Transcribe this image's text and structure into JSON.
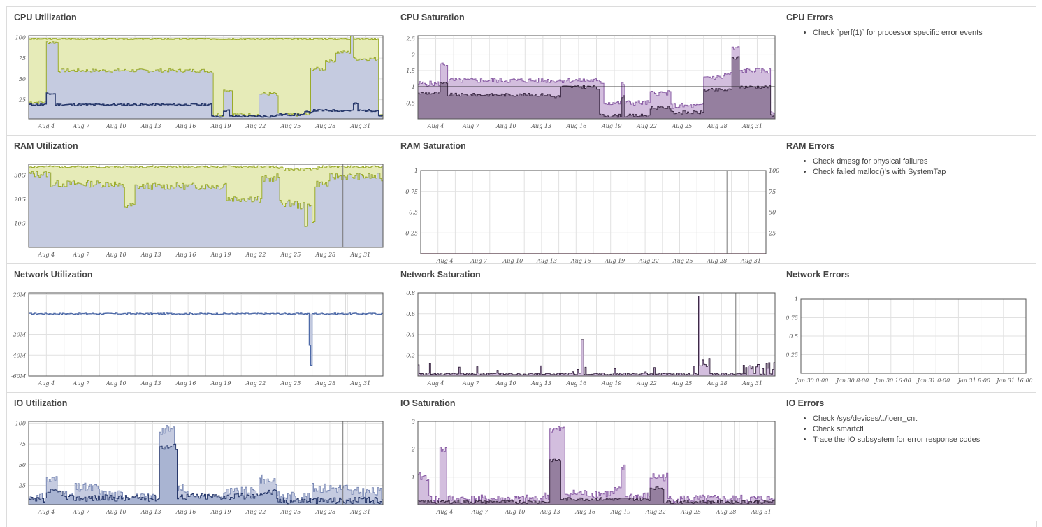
{
  "colors": {
    "grid": "#e1e1e1",
    "frame": "#555555",
    "util_fill_bg": "#e6ebb8",
    "util_stroke_bg": "#9aab2a",
    "util_fill_fg": "#c5cbe0",
    "util_stroke_fg": "#7c8bb6",
    "util_dark": "#27386b",
    "sat_fill_light": "#d3bede",
    "sat_stroke_light": "#8a5ea5",
    "sat_fill_dark": "#957f9f",
    "sat_stroke_dark": "#3c2a45"
  },
  "date_ticks": [
    "Aug 4",
    "Aug 7",
    "Aug 10",
    "Aug 13",
    "Aug 16",
    "Aug 19",
    "Aug 22",
    "Aug 25",
    "Aug 28",
    "Aug 31"
  ],
  "panels": {
    "cpu_util": {
      "title": "CPU Utilization",
      "yticks": [
        "100",
        "75",
        "50",
        "25"
      ]
    },
    "cpu_sat": {
      "title": "CPU Saturation",
      "yticks": [
        "2.5",
        "2",
        "1.5",
        "1",
        "0.5"
      ]
    },
    "cpu_err": {
      "title": "CPU Errors",
      "items": [
        "Check `perf(1)` for processor specific error events"
      ]
    },
    "ram_util": {
      "title": "RAM Utilization",
      "yticks": [
        "30G",
        "20G",
        "10G"
      ]
    },
    "ram_sat": {
      "title": "RAM Saturation",
      "yticks": [
        "1",
        "0.75",
        "0.5",
        "0.25"
      ],
      "y2ticks": [
        "100",
        "75",
        "50",
        "25"
      ]
    },
    "ram_err": {
      "title": "RAM Errors",
      "items": [
        "Check dmesg for physical failures",
        "Check failed malloc()'s with SystemTap"
      ]
    },
    "net_util": {
      "title": "Network Utilization",
      "yticks": [
        "20M",
        "-20M",
        "-40M",
        "-60M"
      ]
    },
    "net_sat": {
      "title": "Network Saturation",
      "yticks": [
        "0.8",
        "0.6",
        "0.4",
        "0.2"
      ]
    },
    "net_err": {
      "title": "Network Errors",
      "yticks": [
        "1",
        "0.75",
        "0.5",
        "0.25"
      ],
      "xticks": [
        "Jan 30 0:00",
        "Jan 30 8:00",
        "Jan 30 16:00",
        "Jan 31 0:00",
        "Jan 31 8:00",
        "Jan 31 16:00"
      ]
    },
    "io_util": {
      "title": "IO Utilization",
      "yticks": [
        "100",
        "75",
        "50",
        "25"
      ]
    },
    "io_sat": {
      "title": "IO Saturation",
      "yticks": [
        "3",
        "2",
        "1"
      ]
    },
    "io_err": {
      "title": "IO Errors",
      "items": [
        "Check /sys/devices/../ioerr_cnt",
        "Check smartctl",
        "Trace the IO subsystem for error response codes"
      ]
    }
  },
  "chart_data": [
    {
      "type": "area",
      "title": "CPU Utilization",
      "x": [
        "Aug 4",
        "Aug 7",
        "Aug 10",
        "Aug 13",
        "Aug 16",
        "Aug 19",
        "Aug 22",
        "Aug 25",
        "Aug 28",
        "Aug 31"
      ],
      "ylim": [
        0,
        100
      ],
      "series": [
        {
          "values": [
            97,
            97,
            97,
            97,
            97,
            97,
            97,
            97,
            97,
            97
          ]
        },
        {
          "values": [
            58,
            58,
            58,
            59,
            58,
            5,
            30,
            7,
            82,
            72
          ]
        },
        {
          "values": [
            17,
            17,
            17,
            18,
            17,
            4,
            5,
            8,
            11,
            9
          ]
        }
      ]
    },
    {
      "type": "area",
      "title": "CPU Saturation",
      "x": [
        "Aug 4",
        "Aug 7",
        "Aug 10",
        "Aug 13",
        "Aug 16",
        "Aug 19",
        "Aug 22",
        "Aug 25",
        "Aug 28",
        "Aug 31"
      ],
      "ylim": [
        0,
        2.6
      ],
      "series": [
        {
          "values": [
            1.7,
            1.15,
            1.1,
            1.1,
            1.1,
            0.5,
            0.8,
            0.55,
            2.2,
            1.3
          ]
        },
        {
          "values": [
            0.8,
            0.75,
            0.75,
            0.7,
            0.95,
            0.15,
            0.35,
            0.25,
            1.9,
            1.0
          ]
        },
        {
          "values": [
            1,
            1,
            1,
            1,
            1,
            1,
            1,
            1,
            1,
            1
          ]
        }
      ]
    },
    {
      "type": "area",
      "title": "RAM Utilization",
      "x": [
        "Aug 4",
        "Aug 7",
        "Aug 10",
        "Aug 13",
        "Aug 16",
        "Aug 19",
        "Aug 22",
        "Aug 25",
        "Aug 28",
        "Aug 31"
      ],
      "ylim": [
        0,
        34
      ],
      "series": [
        {
          "values": [
            33,
            33,
            33,
            33,
            33,
            33,
            32,
            33,
            33,
            33
          ]
        },
        {
          "values": [
            29,
            26,
            26,
            26,
            27,
            20,
            28,
            18,
            29,
            28
          ]
        }
      ]
    },
    {
      "type": "line",
      "title": "RAM Saturation",
      "ylim": [
        0,
        1
      ],
      "values": [
        0,
        0,
        0,
        0,
        0,
        0,
        0,
        0,
        0,
        0
      ]
    },
    {
      "type": "area",
      "title": "Network Utilization",
      "ylim": [
        -60,
        20
      ],
      "values": [
        0,
        0,
        0,
        0,
        0,
        0,
        0,
        -50,
        0,
        0
      ]
    },
    {
      "type": "area",
      "title": "Network Saturation",
      "ylim": [
        0,
        0.8
      ],
      "values": [
        0.02,
        0.03,
        0.1,
        0.02,
        0.35,
        0.03,
        0.03,
        0.77,
        0.1,
        0.1
      ]
    },
    {
      "type": "line",
      "title": "Network Errors",
      "ylim": [
        0,
        1
      ],
      "values": []
    },
    {
      "type": "area",
      "title": "IO Utilization",
      "ylim": [
        0,
        100
      ],
      "values": [
        30,
        25,
        15,
        90,
        20,
        15,
        30,
        15,
        20,
        10
      ]
    },
    {
      "type": "area",
      "title": "IO Saturation",
      "ylim": [
        0,
        3
      ],
      "values": [
        2,
        0.3,
        0.2,
        2.7,
        0.5,
        1.3,
        1.0,
        0.3,
        0.4,
        0.2
      ]
    }
  ]
}
